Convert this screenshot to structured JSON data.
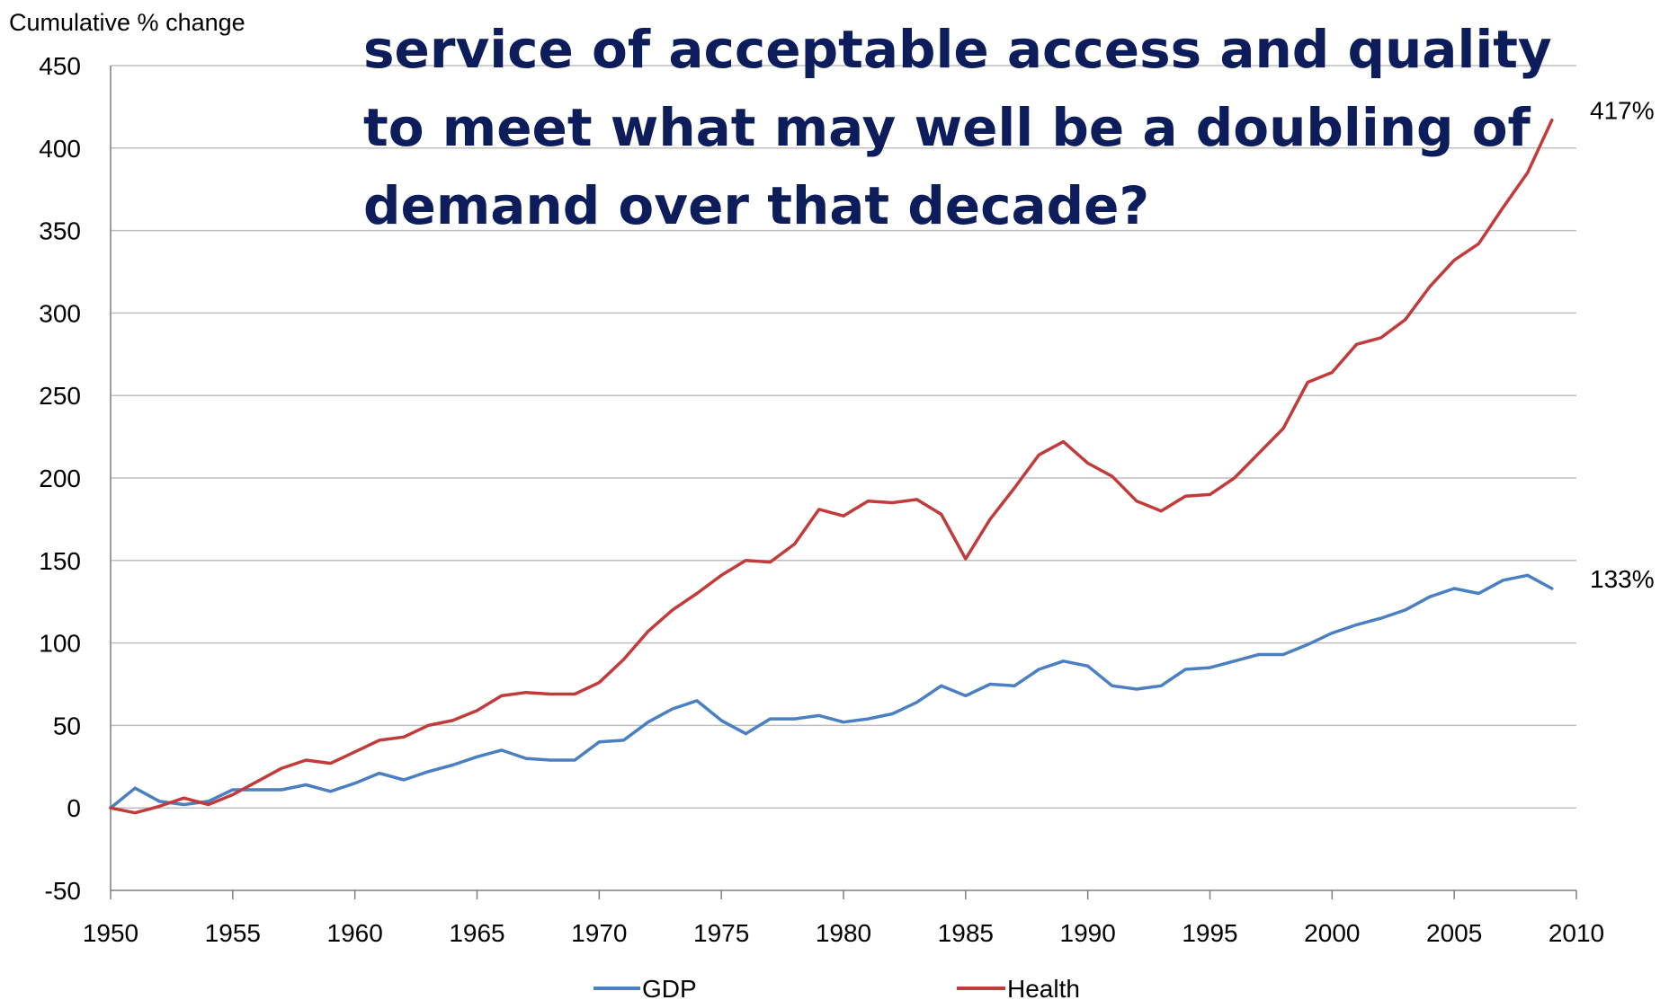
{
  "headline": {
    "lines": [
      "service of acceptable access and quality",
      "to meet what may well be a doubling of",
      "demand over that decade?"
    ],
    "color": "#0d1d5c"
  },
  "chart_data": {
    "type": "line",
    "ylabel": "Cumulative % change",
    "xlabel": "",
    "xlim": [
      1950,
      2010
    ],
    "ylim": [
      -50,
      450
    ],
    "xticks": [
      1950,
      1955,
      1960,
      1965,
      1970,
      1975,
      1980,
      1985,
      1990,
      1995,
      2000,
      2005,
      2010
    ],
    "yticks": [
      -50,
      0,
      50,
      100,
      150,
      200,
      250,
      300,
      350,
      400,
      450
    ],
    "grid": true,
    "legend_position": "bottom",
    "x": [
      1950,
      1951,
      1952,
      1953,
      1954,
      1955,
      1956,
      1957,
      1958,
      1959,
      1960,
      1961,
      1962,
      1963,
      1964,
      1965,
      1966,
      1967,
      1968,
      1969,
      1970,
      1971,
      1972,
      1973,
      1974,
      1975,
      1976,
      1977,
      1978,
      1979,
      1980,
      1981,
      1982,
      1983,
      1984,
      1985,
      1986,
      1987,
      1988,
      1989,
      1990,
      1991,
      1992,
      1993,
      1994,
      1995,
      1996,
      1997,
      1998,
      1999,
      2000,
      2001,
      2002,
      2003,
      2004,
      2005,
      2006,
      2007,
      2008,
      2009
    ],
    "series": [
      {
        "name": "GDP",
        "color": "#4a7fc1",
        "end_label": "133%",
        "values": [
          0,
          12,
          4,
          2,
          4,
          11,
          11,
          11,
          14,
          10,
          15,
          21,
          17,
          22,
          26,
          31,
          35,
          30,
          29,
          29,
          40,
          41,
          52,
          60,
          65,
          53,
          45,
          54,
          54,
          56,
          52,
          54,
          57,
          64,
          74,
          68,
          75,
          74,
          84,
          89,
          86,
          74,
          72,
          74,
          84,
          85,
          89,
          93,
          93,
          99,
          106,
          111,
          115,
          120,
          128,
          133,
          130,
          138,
          141,
          133
        ]
      },
      {
        "name": "Health",
        "color": "#c23b3b",
        "end_label": "417%",
        "values": [
          0,
          -3,
          1,
          6,
          2,
          8,
          16,
          24,
          29,
          27,
          34,
          41,
          43,
          50,
          53,
          59,
          68,
          70,
          69,
          69,
          76,
          90,
          107,
          120,
          130,
          141,
          150,
          149,
          160,
          181,
          177,
          186,
          185,
          187,
          178,
          151,
          175,
          194,
          214,
          222,
          209,
          201,
          186,
          180,
          189,
          190,
          200,
          215,
          230,
          258,
          264,
          281,
          285,
          296,
          316,
          332,
          342,
          364,
          385,
          417
        ]
      }
    ]
  }
}
